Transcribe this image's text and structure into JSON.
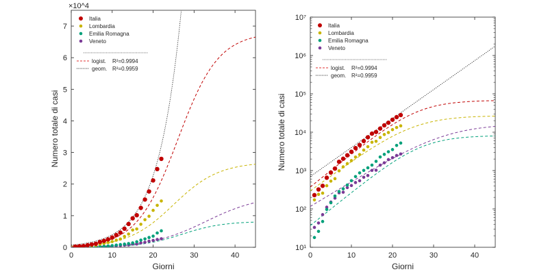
{
  "chart_data": [
    {
      "type": "scatter",
      "panel": "left",
      "xlabel": "Giorni",
      "ylabel": "Numero totale di casi",
      "y_scale": "linear",
      "y_multiplier": "×10^4",
      "xlim": [
        0,
        45
      ],
      "ylim": [
        0,
        75000
      ],
      "xticks": [
        0,
        10,
        20,
        30,
        40
      ],
      "xtick_labels": [
        "0",
        "10",
        "20",
        "30",
        "40"
      ],
      "yticks": [
        0,
        10000,
        20000,
        30000,
        40000,
        50000,
        60000,
        70000
      ],
      "ytick_labels": [
        "0",
        "1",
        "2",
        "3",
        "4",
        "5",
        "6",
        "7"
      ],
      "grid": false,
      "legend_position": "top-left",
      "legend": [
        {
          "label": "Italia",
          "color": "#c00000",
          "marker": "dot-large"
        },
        {
          "label": "Lombardia",
          "color": "#c8b400",
          "marker": "dot"
        },
        {
          "label": "Emilia Romagna",
          "color": "#00a07a",
          "marker": "dot"
        },
        {
          "label": "Veneto",
          "color": "#7a3a96",
          "marker": "dot"
        },
        {
          "label": "logist.",
          "color": "#e03030",
          "style": "dashed",
          "r2": "R²=0.9994"
        },
        {
          "label": "geom.",
          "color": "#222222",
          "style": "dotted",
          "r2": "R²=0.9959"
        }
      ]
    },
    {
      "type": "scatter",
      "panel": "right",
      "xlabel": "Giorni",
      "ylabel": "Numero totale di casi",
      "y_scale": "log",
      "xlim": [
        0,
        45
      ],
      "ylim": [
        10,
        10000000
      ],
      "xticks": [
        0,
        10,
        20,
        30,
        40
      ],
      "xtick_labels": [
        "0",
        "10",
        "20",
        "30",
        "40"
      ],
      "yticks": [
        10,
        100,
        1000,
        10000,
        100000,
        1000000,
        10000000
      ],
      "ytick_labels": [
        "10¹",
        "10²",
        "10³",
        "10⁴",
        "10⁵",
        "10⁶",
        "10⁷"
      ],
      "grid": false,
      "legend_position": "top-left",
      "legend": [
        {
          "label": "Italia",
          "color": "#c00000",
          "marker": "dot-large"
        },
        {
          "label": "Lombardia",
          "color": "#c8b400",
          "marker": "dot"
        },
        {
          "label": "Emilia Romagna",
          "color": "#00a07a",
          "marker": "dot"
        },
        {
          "label": "Veneto",
          "color": "#7a3a96",
          "marker": "dot"
        },
        {
          "label": "logist.",
          "color": "#e03030",
          "style": "dashed",
          "r2": "R²=0.9994"
        },
        {
          "label": "geom.",
          "color": "#222222",
          "style": "dotted",
          "r2": "R²=0.9959"
        }
      ]
    }
  ],
  "series_points": {
    "x": [
      1,
      2,
      3,
      4,
      5,
      6,
      7,
      8,
      9,
      10,
      11,
      12,
      13,
      14,
      15,
      16,
      17,
      18,
      19,
      20,
      21,
      22
    ],
    "italia": [
      229,
      322,
      400,
      650,
      888,
      1128,
      1694,
      2036,
      2502,
      3089,
      3858,
      4636,
      5883,
      7375,
      9172,
      10149,
      12462,
      15113,
      17660,
      21157,
      24747,
      27980
    ],
    "lombardia": [
      172,
      240,
      258,
      403,
      531,
      615,
      984,
      1254,
      1520,
      1820,
      2251,
      2612,
      3420,
      4189,
      5469,
      5791,
      7280,
      8725,
      9820,
      11685,
      13272,
      14649
    ],
    "emilia": [
      18,
      26,
      47,
      97,
      145,
      217,
      285,
      335,
      420,
      544,
      698,
      870,
      1010,
      1180,
      1386,
      1739,
      2263,
      2644,
      3093,
      3531,
      4525,
      5214
    ],
    "veneto": [
      33,
      43,
      71,
      111,
      151,
      191,
      263,
      273,
      360,
      407,
      488,
      543,
      670,
      744,
      1010,
      1023,
      1384,
      1595,
      1935,
      2172,
      2473,
      2704
    ]
  },
  "fits": {
    "logistic": {
      "italia": {
        "K": 68000,
        "r": 0.2,
        "t0": 26
      },
      "lombardia": {
        "K": 27000,
        "r": 0.18,
        "t0": 25
      },
      "emilia": {
        "K": 8200,
        "r": 0.2,
        "t0": 27
      },
      "veneto": {
        "K": 16500,
        "r": 0.15,
        "t0": 33
      }
    },
    "geometric": {
      "a": 700,
      "b": 1.19
    }
  }
}
